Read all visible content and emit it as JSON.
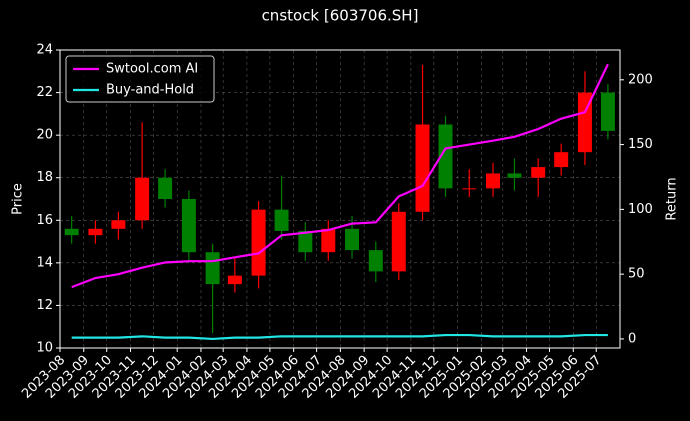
{
  "chart_data": {
    "type": "candlestick",
    "title": "cnstock [603706.SH]",
    "ylabel": "Price",
    "y2label": "Return",
    "x": [
      "2023-08",
      "2023-09",
      "2023-10",
      "2023-11",
      "2023-12",
      "2024-01",
      "2024-02",
      "2024-03",
      "2024-04",
      "2024-05",
      "2024-06",
      "2024-07",
      "2024-08",
      "2024-09",
      "2024-10",
      "2024-11",
      "2024-12",
      "2025-01",
      "2025-02",
      "2025-03",
      "2025-04",
      "2025-05",
      "2025-06",
      "2025-07"
    ],
    "open": [
      15.6,
      15.3,
      15.6,
      16.0,
      18.0,
      17.0,
      14.5,
      13.0,
      13.4,
      16.5,
      15.5,
      14.5,
      15.6,
      14.6,
      13.6,
      16.4,
      20.5,
      17.5,
      17.5,
      18.2,
      18.0,
      18.5,
      19.2,
      22.0
    ],
    "high": [
      16.2,
      16.0,
      16.4,
      20.6,
      18.4,
      17.4,
      14.9,
      14.2,
      16.9,
      18.1,
      15.9,
      16.0,
      16.2,
      15.0,
      16.8,
      23.3,
      20.9,
      18.4,
      18.7,
      18.9,
      18.9,
      19.6,
      23.0,
      22.4
    ],
    "low": [
      14.9,
      14.9,
      15.1,
      15.6,
      16.6,
      14.1,
      10.7,
      12.6,
      12.8,
      15.1,
      14.1,
      14.1,
      14.2,
      13.1,
      13.2,
      16.0,
      17.1,
      17.1,
      17.1,
      17.4,
      17.1,
      18.1,
      18.6,
      19.8
    ],
    "close": [
      15.3,
      15.6,
      16.0,
      18.0,
      17.0,
      14.5,
      13.0,
      13.4,
      16.5,
      15.5,
      14.5,
      15.6,
      14.6,
      13.6,
      16.4,
      20.5,
      17.5,
      17.5,
      18.2,
      18.0,
      18.5,
      19.2,
      22.0,
      20.2
    ],
    "up_color": "#ff0000",
    "down_color": "#008000",
    "series": [
      {
        "name": "Swtool.com AI",
        "color": "#ff00ff",
        "axis": "y2",
        "values": [
          40,
          47,
          50,
          55,
          59,
          60,
          60,
          63,
          66,
          80,
          82,
          84,
          89,
          90,
          110,
          118,
          147,
          150,
          153,
          156,
          162,
          170,
          175,
          212
        ]
      },
      {
        "name": "Buy-and-Hold",
        "color": "#22e5e5",
        "axis": "y2",
        "values": [
          1,
          1,
          1,
          2,
          1,
          1,
          0,
          1,
          1,
          2,
          2,
          2,
          2,
          2,
          2,
          2,
          3,
          3,
          2,
          2,
          2,
          2,
          3,
          3
        ]
      }
    ],
    "xlim": [
      "2023-08",
      "2025-08"
    ],
    "xticks": [
      "2023-08",
      "2023-09",
      "2023-10",
      "2023-11",
      "2023-12",
      "2024-01",
      "2024-02",
      "2024-03",
      "2024-04",
      "2024-05",
      "2024-06",
      "2024-07",
      "2024-08",
      "2024-09",
      "2024-10",
      "2024-11",
      "2024-12",
      "2025-01",
      "2025-02",
      "2025-03",
      "2025-04",
      "2025-05",
      "2025-06",
      "2025-07"
    ],
    "ylim": [
      10,
      24
    ],
    "yticks": [
      10,
      12,
      14,
      16,
      18,
      20,
      22,
      24
    ],
    "y2lim": [
      -7,
      223
    ],
    "y2ticks": [
      0,
      50,
      100,
      150,
      200
    ],
    "grid": true,
    "legend": "upper left"
  }
}
